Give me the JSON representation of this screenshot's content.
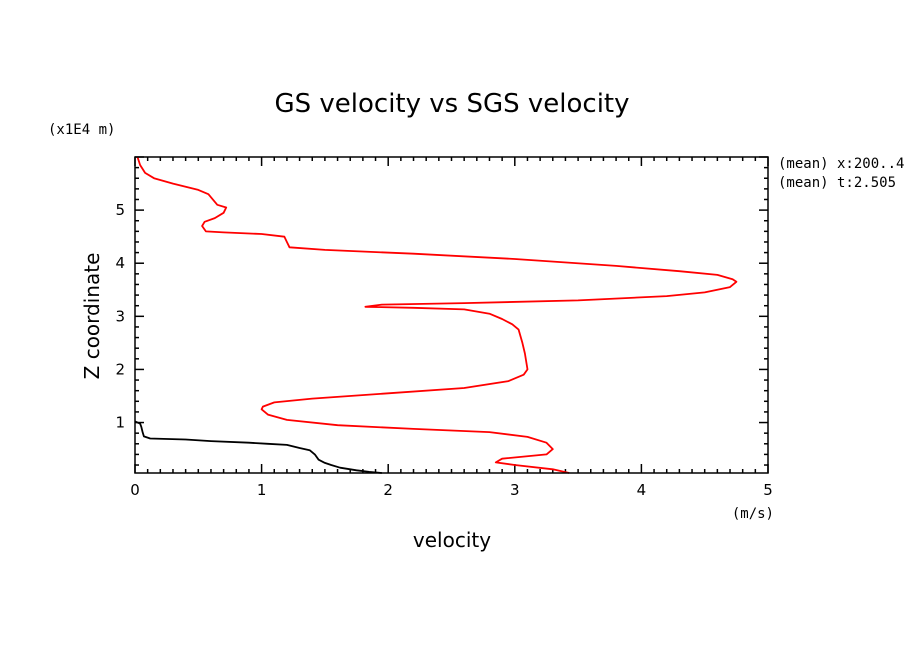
{
  "chart_data": {
    "type": "line",
    "title": "GS velocity vs SGS velocity",
    "xlabel": "velocity",
    "ylabel": "Z coordinate",
    "x_unit": "(m/s)",
    "y_unit": "(x1E4 m)",
    "xlim": [
      0,
      5
    ],
    "ylim": [
      0.05,
      6.0
    ],
    "x_ticks": [
      "0",
      "1",
      "2",
      "3",
      "4",
      "5"
    ],
    "y_ticks": [
      "1",
      "2",
      "3",
      "4",
      "5"
    ],
    "annotations": [
      "(mean) x:200..4",
      "(mean) t:2.505"
    ],
    "series": [
      {
        "color": "#ff0000",
        "points": [
          [
            0.02,
            6.0
          ],
          [
            0.04,
            5.85
          ],
          [
            0.08,
            5.7
          ],
          [
            0.15,
            5.6
          ],
          [
            0.3,
            5.5
          ],
          [
            0.5,
            5.38
          ],
          [
            0.58,
            5.3
          ],
          [
            0.65,
            5.1
          ],
          [
            0.72,
            5.05
          ],
          [
            0.7,
            4.95
          ],
          [
            0.63,
            4.85
          ],
          [
            0.55,
            4.78
          ],
          [
            0.53,
            4.7
          ],
          [
            0.56,
            4.6
          ],
          [
            0.7,
            4.58
          ],
          [
            1.0,
            4.55
          ],
          [
            1.18,
            4.5
          ],
          [
            1.2,
            4.4
          ],
          [
            1.22,
            4.3
          ],
          [
            1.5,
            4.25
          ],
          [
            2.2,
            4.18
          ],
          [
            3.0,
            4.08
          ],
          [
            3.8,
            3.95
          ],
          [
            4.3,
            3.85
          ],
          [
            4.6,
            3.78
          ],
          [
            4.72,
            3.7
          ],
          [
            4.75,
            3.65
          ],
          [
            4.7,
            3.55
          ],
          [
            4.5,
            3.45
          ],
          [
            4.2,
            3.38
          ],
          [
            3.5,
            3.3
          ],
          [
            2.6,
            3.25
          ],
          [
            1.95,
            3.22
          ],
          [
            1.82,
            3.18
          ],
          [
            2.2,
            3.16
          ],
          [
            2.6,
            3.13
          ],
          [
            2.8,
            3.05
          ],
          [
            2.9,
            2.95
          ],
          [
            2.98,
            2.85
          ],
          [
            3.03,
            2.75
          ],
          [
            3.06,
            2.5
          ],
          [
            3.08,
            2.3
          ],
          [
            3.1,
            2.0
          ],
          [
            3.07,
            1.9
          ],
          [
            2.95,
            1.78
          ],
          [
            2.6,
            1.65
          ],
          [
            2.0,
            1.55
          ],
          [
            1.4,
            1.45
          ],
          [
            1.1,
            1.38
          ],
          [
            1.01,
            1.3
          ],
          [
            1.0,
            1.25
          ],
          [
            1.05,
            1.15
          ],
          [
            1.2,
            1.05
          ],
          [
            1.6,
            0.95
          ],
          [
            2.2,
            0.88
          ],
          [
            2.8,
            0.82
          ],
          [
            3.1,
            0.73
          ],
          [
            3.25,
            0.62
          ],
          [
            3.3,
            0.5
          ],
          [
            3.25,
            0.4
          ],
          [
            2.9,
            0.32
          ],
          [
            2.85,
            0.25
          ],
          [
            3.0,
            0.2
          ],
          [
            3.3,
            0.12
          ],
          [
            3.43,
            0.05
          ]
        ]
      },
      {
        "color": "#000000",
        "points": [
          [
            0.0,
            1.02
          ],
          [
            0.04,
            0.98
          ],
          [
            0.05,
            0.92
          ],
          [
            0.06,
            0.82
          ],
          [
            0.07,
            0.74
          ],
          [
            0.12,
            0.7
          ],
          [
            0.4,
            0.68
          ],
          [
            0.6,
            0.65
          ],
          [
            0.9,
            0.62
          ],
          [
            1.05,
            0.6
          ],
          [
            1.2,
            0.58
          ],
          [
            1.3,
            0.52
          ],
          [
            1.38,
            0.48
          ],
          [
            1.42,
            0.4
          ],
          [
            1.45,
            0.3
          ],
          [
            1.5,
            0.24
          ],
          [
            1.55,
            0.2
          ],
          [
            1.62,
            0.15
          ],
          [
            1.75,
            0.1
          ],
          [
            1.85,
            0.07
          ],
          [
            1.95,
            0.05
          ]
        ]
      }
    ]
  }
}
